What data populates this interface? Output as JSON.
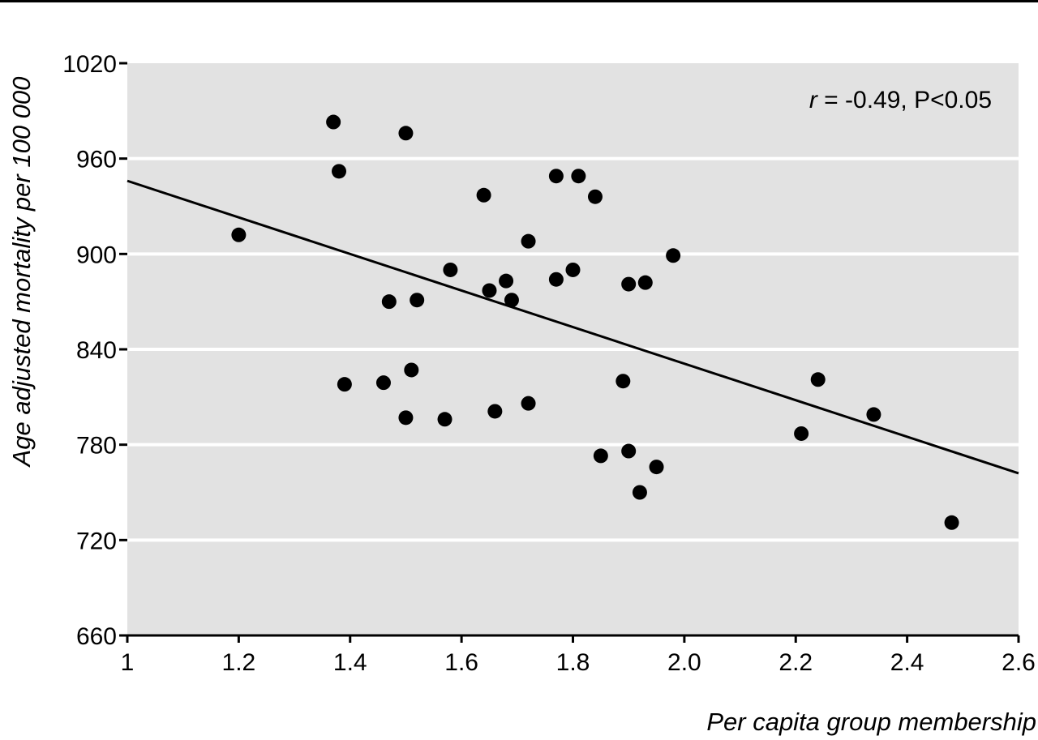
{
  "chart_data": {
    "type": "scatter",
    "title": "",
    "xlabel": "Per capita group membership",
    "ylabel": "Age adjusted mortality per 100 000",
    "xlim": [
      1,
      2.6
    ],
    "ylim": [
      660,
      1020
    ],
    "x_ticks": [
      1,
      1.2,
      1.4,
      1.6,
      1.8,
      2.0,
      2.2,
      2.4,
      2.6
    ],
    "x_tick_labels": [
      "1",
      "1.2",
      "1.4",
      "1.6",
      "1.8",
      "2.0",
      "2.2",
      "2.4",
      "2.6"
    ],
    "y_ticks": [
      660,
      720,
      780,
      840,
      900,
      960,
      1020
    ],
    "y_tick_labels": [
      "660",
      "720",
      "780",
      "840",
      "900",
      "960",
      "1020"
    ],
    "grid": "horizontal",
    "colors": {
      "plot_background": "#e2e2e2",
      "gridline": "#ffffff",
      "points": "#000000",
      "fit_line": "#000000",
      "top_rule": "#000000"
    },
    "annotation": {
      "r_symbol": "r",
      "rest": " = -0.49, P<0.05"
    },
    "trendline": {
      "x": [
        1,
        2.6
      ],
      "y": [
        946,
        762
      ]
    },
    "points": [
      {
        "x": 1.2,
        "y": 912
      },
      {
        "x": 1.37,
        "y": 983
      },
      {
        "x": 1.38,
        "y": 952
      },
      {
        "x": 1.39,
        "y": 818
      },
      {
        "x": 1.46,
        "y": 819
      },
      {
        "x": 1.47,
        "y": 870
      },
      {
        "x": 1.5,
        "y": 976
      },
      {
        "x": 1.5,
        "y": 797
      },
      {
        "x": 1.51,
        "y": 827
      },
      {
        "x": 1.52,
        "y": 871
      },
      {
        "x": 1.57,
        "y": 796
      },
      {
        "x": 1.58,
        "y": 890
      },
      {
        "x": 1.64,
        "y": 937
      },
      {
        "x": 1.65,
        "y": 877
      },
      {
        "x": 1.66,
        "y": 801
      },
      {
        "x": 1.68,
        "y": 883
      },
      {
        "x": 1.69,
        "y": 871
      },
      {
        "x": 1.72,
        "y": 908
      },
      {
        "x": 1.72,
        "y": 806
      },
      {
        "x": 1.77,
        "y": 949
      },
      {
        "x": 1.77,
        "y": 884
      },
      {
        "x": 1.8,
        "y": 890
      },
      {
        "x": 1.81,
        "y": 949
      },
      {
        "x": 1.84,
        "y": 936
      },
      {
        "x": 1.85,
        "y": 773
      },
      {
        "x": 1.89,
        "y": 820
      },
      {
        "x": 1.9,
        "y": 776
      },
      {
        "x": 1.9,
        "y": 881
      },
      {
        "x": 1.92,
        "y": 750
      },
      {
        "x": 1.93,
        "y": 882
      },
      {
        "x": 1.95,
        "y": 766
      },
      {
        "x": 1.98,
        "y": 899
      },
      {
        "x": 2.21,
        "y": 787
      },
      {
        "x": 2.24,
        "y": 821
      },
      {
        "x": 2.34,
        "y": 799
      },
      {
        "x": 2.48,
        "y": 731
      }
    ]
  }
}
